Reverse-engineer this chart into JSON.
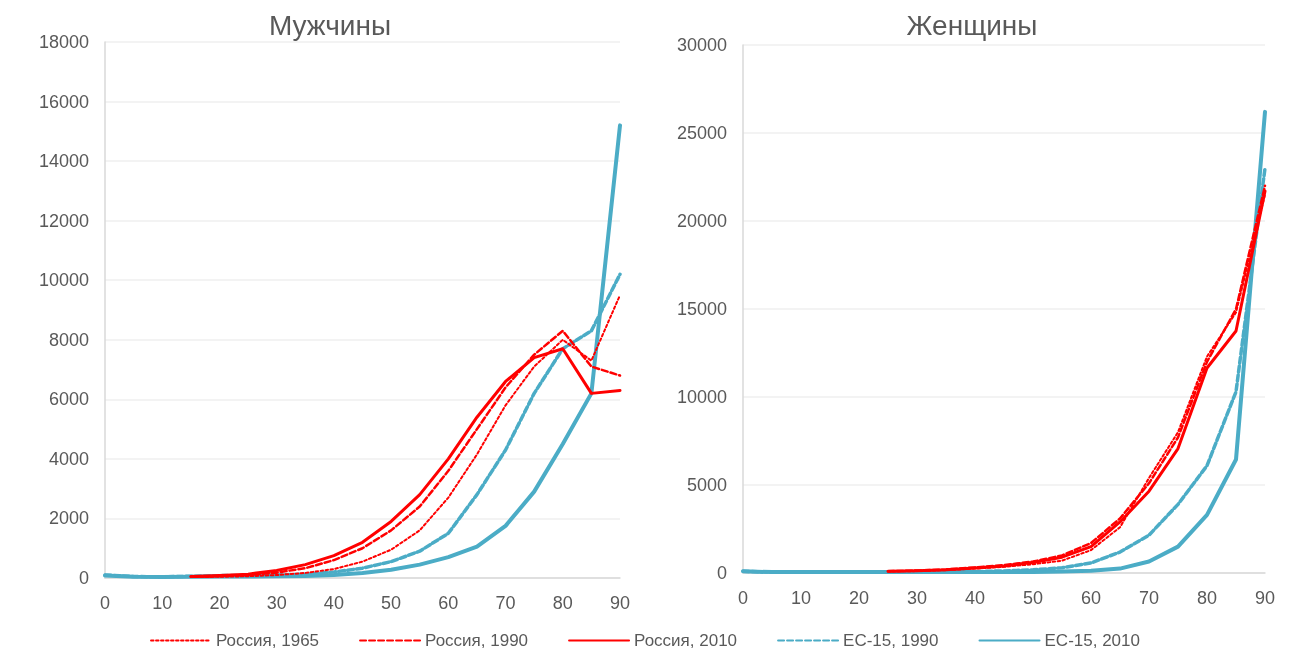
{
  "chart_data": [
    {
      "type": "line",
      "title": "Мужчины",
      "x": [
        0,
        5,
        10,
        15,
        20,
        25,
        30,
        35,
        40,
        45,
        50,
        55,
        60,
        65,
        70,
        75,
        80,
        85,
        90
      ],
      "xlim": [
        0,
        90
      ],
      "xticks": [
        0,
        10,
        20,
        30,
        40,
        50,
        60,
        70,
        80,
        90
      ],
      "ylim": [
        0,
        18000
      ],
      "yticks": [
        0,
        2000,
        4000,
        6000,
        8000,
        10000,
        12000,
        14000,
        16000,
        18000
      ],
      "grid": "y",
      "legend": false,
      "series": [
        {
          "color": "#ff0000",
          "line_style": "dotted",
          "values": [
            null,
            null,
            null,
            30,
            40,
            60,
            100,
            170,
            300,
            550,
            950,
            1600,
            2700,
            4150,
            5800,
            7100,
            8000,
            7300,
            9500
          ]
        },
        {
          "color": "#ff0000",
          "line_style": "dashed",
          "values": [
            null,
            null,
            null,
            40,
            60,
            100,
            180,
            330,
            600,
            1000,
            1600,
            2400,
            3600,
            5000,
            6400,
            7500,
            8300,
            7100,
            6800
          ]
        },
        {
          "color": "#ff0000",
          "line_style": "solid",
          "values": [
            null,
            null,
            null,
            50,
            80,
            130,
            250,
            450,
            750,
            1200,
            1900,
            2800,
            4000,
            5400,
            6600,
            7400,
            7700,
            6200,
            6300
          ]
        },
        {
          "color": "#4bacc6",
          "line_style": "dashed",
          "values": [
            100,
            50,
            40,
            60,
            80,
            90,
            100,
            130,
            200,
            330,
            550,
            900,
            1500,
            2800,
            4300,
            6200,
            7700,
            8300,
            10200
          ]
        },
        {
          "color": "#4bacc6",
          "line_style": "solid",
          "values": [
            80,
            40,
            30,
            40,
            50,
            50,
            60,
            70,
            100,
            170,
            280,
            450,
            700,
            1050,
            1750,
            2900,
            4500,
            6200,
            15200
          ]
        }
      ]
    },
    {
      "type": "line",
      "title": "Женщины",
      "x": [
        0,
        5,
        10,
        15,
        20,
        25,
        30,
        35,
        40,
        45,
        50,
        55,
        60,
        65,
        70,
        75,
        80,
        85,
        90
      ],
      "xlim": [
        0,
        90
      ],
      "xticks": [
        0,
        10,
        20,
        30,
        40,
        50,
        60,
        70,
        80,
        90
      ],
      "ylim": [
        0,
        30000
      ],
      "yticks": [
        0,
        5000,
        10000,
        15000,
        20000,
        25000,
        30000
      ],
      "grid": "y",
      "legend": "bottom",
      "series": [
        {
          "name": "Россия, 1965",
          "color": "#ff0000",
          "line_style": "dotted",
          "values": [
            null,
            null,
            null,
            null,
            null,
            80,
            110,
            160,
            250,
            350,
            500,
            700,
            1300,
            2600,
            5400,
            8000,
            12300,
            14800,
            21500
          ]
        },
        {
          "name": "Россия, 1990",
          "color": "#ff0000",
          "line_style": "dashed",
          "values": [
            null,
            null,
            null,
            null,
            null,
            100,
            140,
            200,
            320,
            450,
            650,
            1000,
            1700,
            3100,
            5100,
            7700,
            12000,
            15000,
            22000
          ]
        },
        {
          "name": "Россия, 2010",
          "color": "#ff0000",
          "line_style": "solid",
          "values": [
            null,
            null,
            null,
            null,
            null,
            100,
            130,
            180,
            280,
            400,
            600,
            900,
            1500,
            2900,
            4650,
            7070,
            11650,
            13750,
            21700
          ]
        },
        {
          "name": "ЕС-15, 1990",
          "color": "#4bacc6",
          "line_style": "dashed",
          "values": [
            100,
            50,
            50,
            50,
            50,
            50,
            60,
            70,
            80,
            120,
            180,
            300,
            570,
            1190,
            2150,
            3900,
            6100,
            10300,
            23000
          ]
        },
        {
          "name": "ЕС-15, 2010",
          "color": "#4bacc6",
          "line_style": "solid",
          "values": [
            100,
            50,
            50,
            50,
            50,
            50,
            50,
            50,
            50,
            50,
            60,
            80,
            130,
            250,
            650,
            1500,
            3300,
            6450,
            26200
          ]
        }
      ]
    }
  ]
}
